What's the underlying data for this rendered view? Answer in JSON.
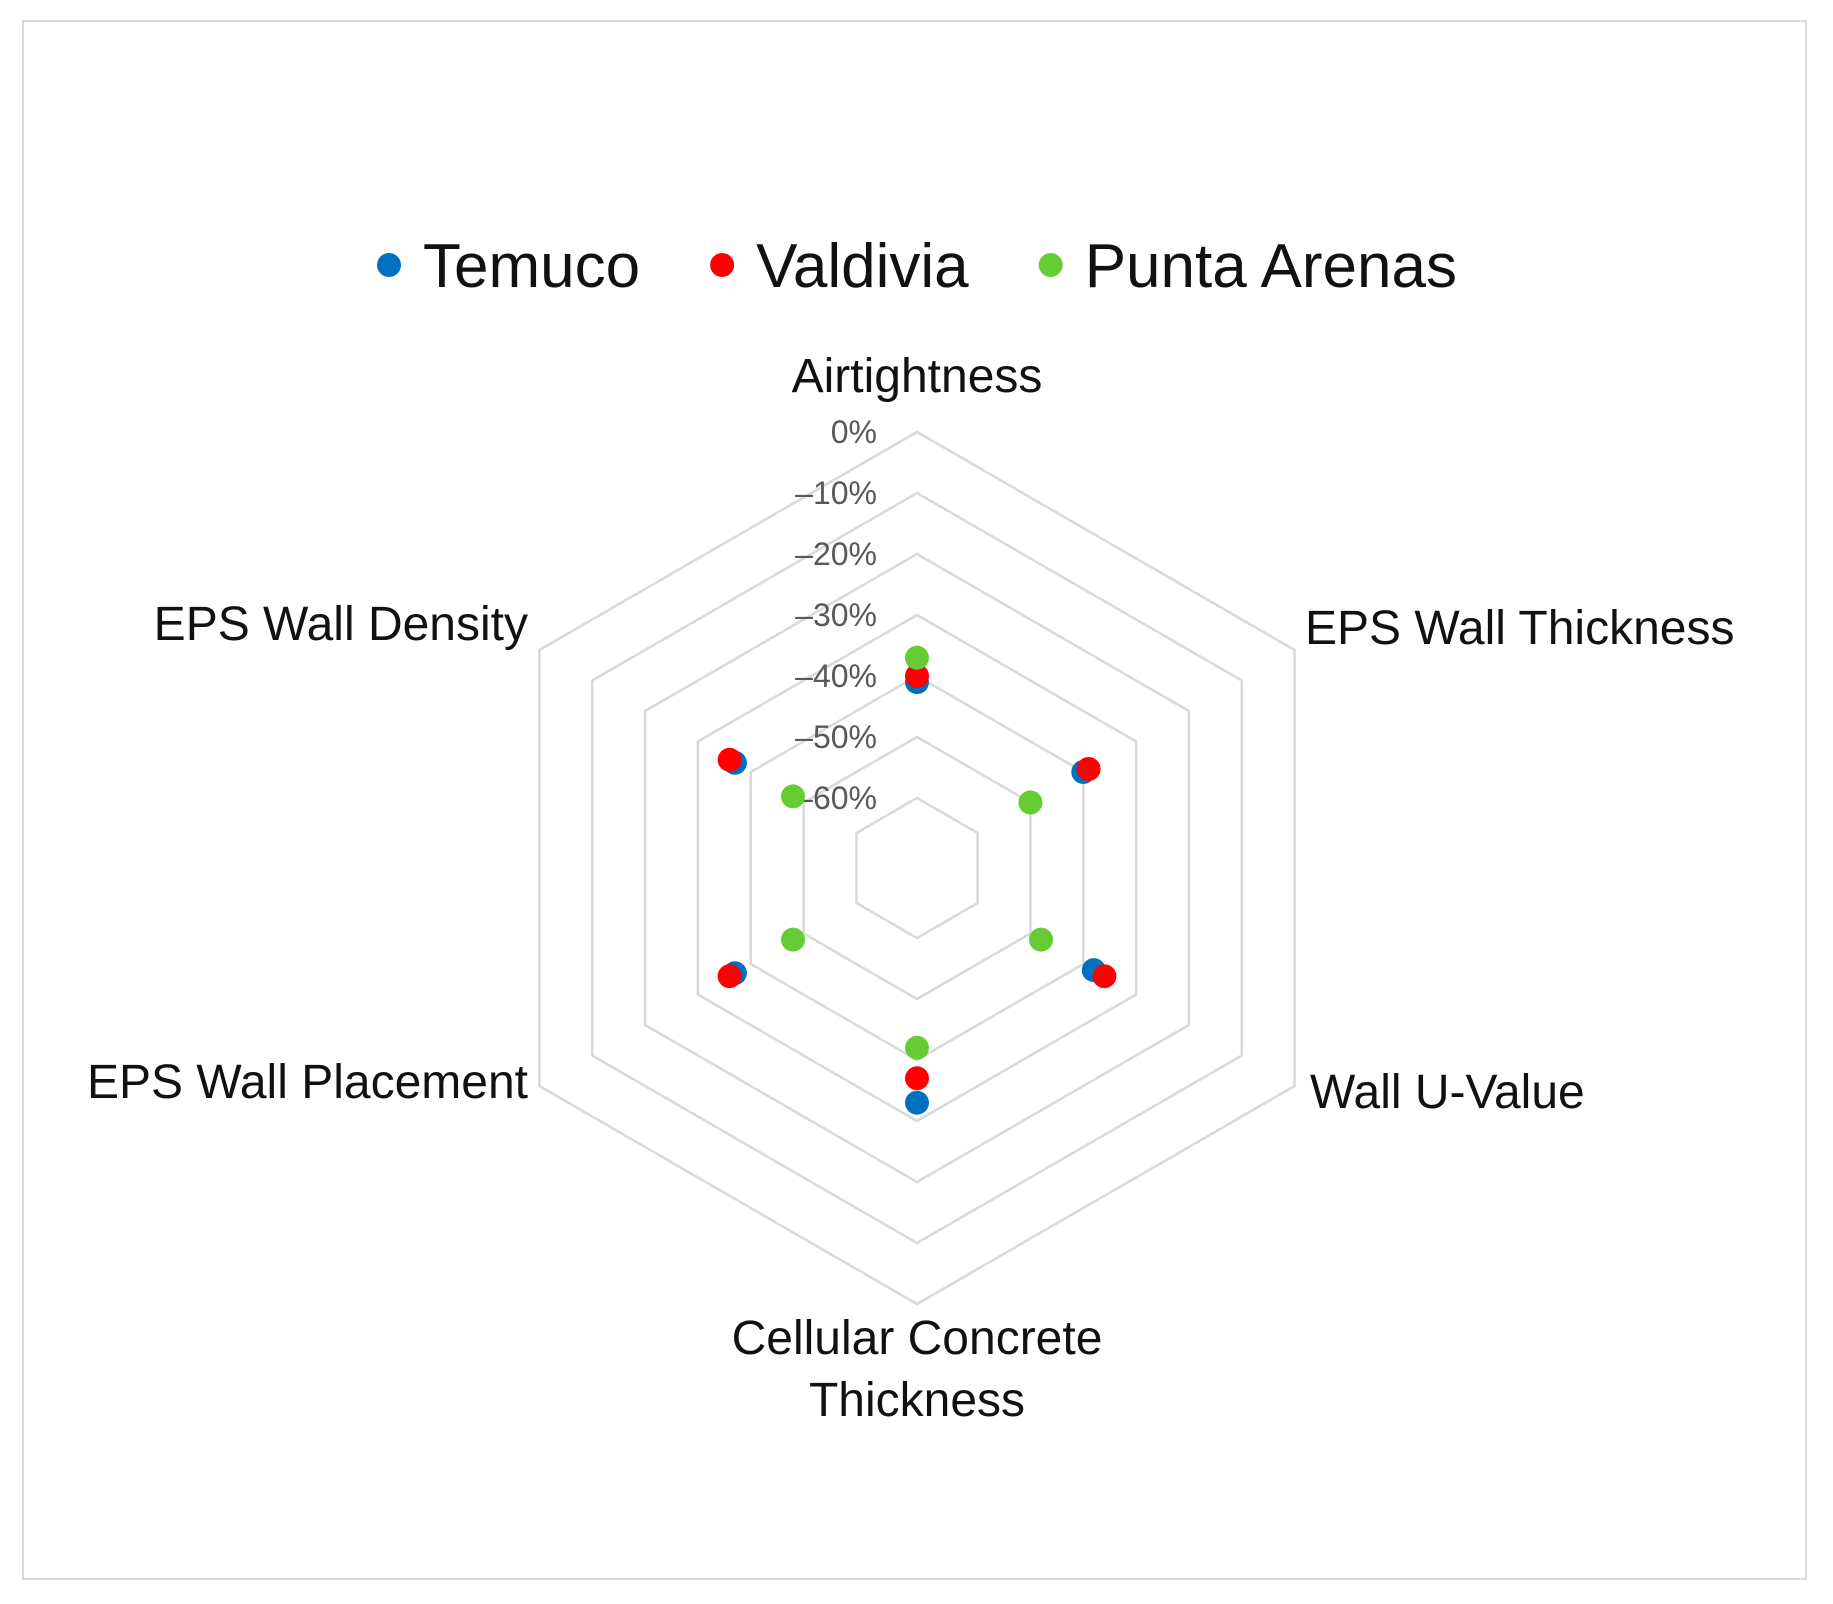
{
  "chart_data": {
    "type": "radar",
    "title": "",
    "axes": [
      {
        "label_lines": [
          "Airtightness"
        ]
      },
      {
        "label_lines": [
          "EPS Wall Thickness"
        ]
      },
      {
        "label_lines": [
          "Wall U-Value"
        ]
      },
      {
        "label_lines": [
          "Cellular Concrete",
          "Thickness"
        ]
      },
      {
        "label_lines": [
          "EPS Wall Placement"
        ]
      },
      {
        "label_lines": [
          "EPS Wall Density"
        ]
      }
    ],
    "radial_ticks": [
      "0%",
      "–10%",
      "–20%",
      "–30%",
      "–40%",
      "–50%",
      "–60%"
    ],
    "radial_range": [
      -60,
      0
    ],
    "grid": true,
    "legend_position": "top",
    "markers_only": true,
    "series": [
      {
        "name": "Temuco",
        "color": "#0070C0",
        "values": [
          -41,
          -40,
          -38,
          -33,
          -37,
          -37
        ]
      },
      {
        "name": "Valdivia",
        "color": "#FF0000",
        "values": [
          -40,
          -39,
          -36,
          -37,
          -36,
          -36
        ]
      },
      {
        "name": "Punta Arenas",
        "color": "#66CC33",
        "values": [
          -37,
          -50,
          -48,
          -42,
          -48,
          -48
        ]
      }
    ]
  }
}
